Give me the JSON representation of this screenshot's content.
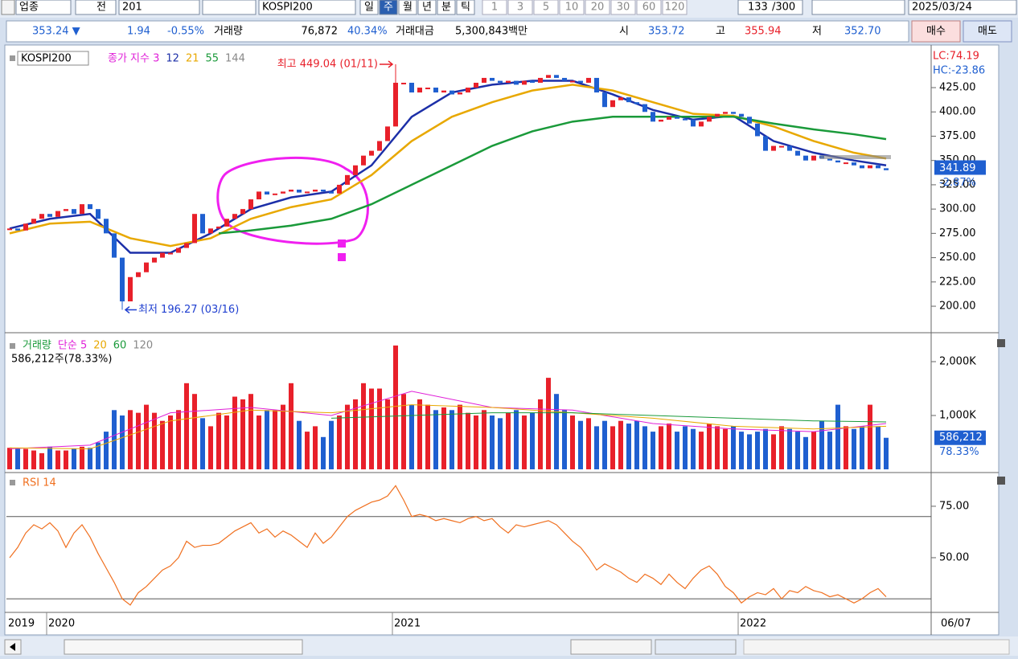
{
  "toolbar": {
    "market": "업종",
    "scope": "전",
    "code": "201",
    "name": "KOSPI200",
    "periods": [
      "일",
      "주",
      "월",
      "년",
      "분",
      "틱"
    ],
    "selected_period": "주",
    "intervals": [
      "1",
      "3",
      "5",
      "10",
      "20",
      "30",
      "60",
      "120"
    ],
    "count": "133",
    "max_count": "/300",
    "date": "2025/03/24"
  },
  "quote": {
    "price": "353.24 ▼",
    "change": "1.94",
    "change_pct": "-0.55%",
    "volume_label": "거래량",
    "volume": "76,872",
    "volume_pct": "40.34%",
    "amount_label": "거래대금",
    "amount": "5,300,843백만",
    "open_label": "시",
    "open": "353.72",
    "high_label": "고",
    "high": "355.94",
    "low_label": "저",
    "low": "352.70",
    "buy": "매수",
    "sell": "매도"
  },
  "price_chart": {
    "type": "candlestick",
    "name": "KOSPI200",
    "ylim": [
      174.4,
      467.2
    ],
    "yticks": [
      {
        "value": 200,
        "label": "200.00"
      },
      {
        "value": 225,
        "label": "225.00"
      },
      {
        "value": 250,
        "label": "250.00"
      },
      {
        "value": 275,
        "label": "275.00"
      },
      {
        "value": 300,
        "label": "300.00"
      },
      {
        "value": 325,
        "label": "325.00"
      },
      {
        "value": 350,
        "label": "350.00"
      },
      {
        "value": 375,
        "label": "375.00"
      },
      {
        "value": 400,
        "label": "400.00"
      },
      {
        "value": 425,
        "label": "425.00"
      }
    ],
    "lc": "LC:74.19",
    "hc": "HC:-23.86",
    "last_value": 341.89,
    "last_change": "-2.87%",
    "high_note": "최고 449.04 (01/11)",
    "high_value": 449.04,
    "high_index": 48,
    "low_note": "최저 196.27 (03/16)",
    "low_value": 196.27,
    "low_index": 14,
    "up_color": "#e8202a",
    "down_color": "#1f5fd0",
    "closes": [
      280,
      278,
      285,
      290,
      295,
      292,
      298,
      300,
      295,
      305,
      300,
      290,
      275,
      250,
      205,
      230,
      235,
      245,
      250,
      255,
      255,
      260,
      265,
      295,
      275,
      280,
      282,
      290,
      295,
      300,
      310,
      318,
      315,
      316,
      318,
      320,
      317,
      318,
      320,
      318,
      316,
      325,
      335,
      345,
      355,
      360,
      370,
      385,
      430,
      430,
      420,
      425,
      425,
      420,
      422,
      418,
      420,
      425,
      430,
      435,
      432,
      430,
      432,
      428,
      432,
      430,
      435,
      438,
      435,
      432,
      432,
      430,
      435,
      420,
      405,
      412,
      415,
      410,
      408,
      400,
      390,
      392,
      395,
      393,
      392,
      385,
      390,
      395,
      398,
      400,
      398,
      395,
      388,
      375,
      360,
      365,
      365,
      360,
      355,
      350,
      355,
      352,
      350,
      348,
      348,
      345,
      342,
      345,
      342,
      340
    ],
    "series": [
      {
        "name": "종가 지수 3",
        "color": "#e020d8"
      },
      {
        "name": "12",
        "color": "#1c2fa8",
        "x": [
          0,
          5,
          10,
          15,
          20,
          25,
          30,
          35,
          40,
          45,
          50,
          55,
          60,
          65,
          70,
          75,
          80,
          85,
          90,
          95,
          100,
          105,
          109
        ],
        "values": [
          280,
          290,
          295,
          255,
          255,
          275,
          300,
          312,
          318,
          345,
          395,
          420,
          428,
          432,
          432,
          418,
          402,
          392,
          396,
          370,
          358,
          350,
          345
        ]
      },
      {
        "name": "21",
        "color": "#e8a800",
        "x": [
          0,
          5,
          10,
          15,
          20,
          25,
          30,
          35,
          40,
          45,
          50,
          55,
          60,
          65,
          70,
          75,
          80,
          85,
          90,
          95,
          100,
          105,
          109
        ],
        "values": [
          275,
          285,
          287,
          270,
          262,
          270,
          290,
          302,
          310,
          335,
          370,
          395,
          410,
          422,
          428,
          422,
          410,
          398,
          396,
          385,
          370,
          358,
          352
        ]
      },
      {
        "name": "55",
        "color": "#1a9a3a",
        "x": [
          26,
          30,
          35,
          40,
          45,
          50,
          55,
          60,
          65,
          70,
          75,
          80,
          85,
          90,
          95,
          100,
          105,
          109
        ],
        "values": [
          275,
          278,
          283,
          290,
          305,
          325,
          345,
          365,
          380,
          390,
          395,
          395,
          395,
          395,
          388,
          382,
          377,
          372
        ]
      },
      {
        "name": "144",
        "color": "#888888"
      }
    ]
  },
  "volume_chart": {
    "type": "bar",
    "title": "거래량",
    "subtitle": "586,212주(78.33%)",
    "ylim": [
      -30,
      2448
    ],
    "yticks": [
      {
        "value": 1000,
        "label": "1,000K"
      },
      {
        "value": 2000,
        "label": "2,000K"
      }
    ],
    "last_label": "586,212",
    "last_pct": "78.33%",
    "values": [
      400,
      380,
      380,
      350,
      300,
      420,
      350,
      350,
      380,
      420,
      400,
      500,
      700,
      1100,
      1000,
      1100,
      1050,
      1200,
      1050,
      900,
      1000,
      1100,
      1600,
      1400,
      950,
      800,
      1050,
      1000,
      1350,
      1300,
      1400,
      1000,
      1100,
      1100,
      1200,
      1600,
      900,
      700,
      800,
      600,
      900,
      1000,
      1200,
      1300,
      1600,
      1500,
      1500,
      1300,
      2300,
      1400,
      1200,
      1300,
      1200,
      1100,
      1150,
      1100,
      1200,
      1050,
      1000,
      1100,
      1000,
      950,
      1050,
      1100,
      1000,
      1050,
      1300,
      1700,
      1400,
      1100,
      1000,
      900,
      950,
      800,
      900,
      800,
      900,
      850,
      900,
      800,
      700,
      800,
      850,
      700,
      800,
      750,
      700,
      850,
      800,
      750,
      800,
      700,
      650,
      700,
      750,
      650,
      800,
      750,
      700,
      600,
      700,
      900,
      700,
      1200,
      800,
      750,
      800,
      1200,
      800,
      586
    ],
    "series": [
      {
        "name": "단순 5",
        "color": "#e020d8",
        "x": [
          0,
          10,
          20,
          30,
          40,
          50,
          60,
          70,
          80,
          90,
          100,
          109
        ],
        "values": [
          380,
          450,
          1050,
          1150,
          1000,
          1450,
          1150,
          1100,
          850,
          750,
          700,
          850
        ]
      },
      {
        "name": "20",
        "color": "#e8a800",
        "x": [
          0,
          10,
          20,
          30,
          40,
          50,
          60,
          70,
          80,
          90,
          100,
          109
        ],
        "values": [
          400,
          380,
          900,
          1100,
          1050,
          1200,
          1150,
          1050,
          950,
          800,
          750,
          800
        ]
      },
      {
        "name": "60",
        "color": "#1a9a3a",
        "x": [
          40,
          50,
          60,
          70,
          80,
          90,
          100,
          109
        ],
        "values": [
          950,
          1000,
          1050,
          1050,
          1000,
          950,
          900,
          880
        ]
      },
      {
        "name": "120",
        "color": "#888888"
      }
    ]
  },
  "rsi_chart": {
    "type": "line",
    "title": "RSI 14",
    "color": "#f07020",
    "ylim": [
      24.2,
      90.6
    ],
    "yticks": [
      {
        "value": 50,
        "label": "50.00"
      },
      {
        "value": 75,
        "label": "75.00"
      }
    ],
    "levels": [
      70,
      30
    ],
    "values": [
      50,
      55,
      62,
      66,
      64,
      67,
      63,
      55,
      62,
      66,
      60,
      52,
      45,
      38,
      30,
      27,
      33,
      36,
      40,
      44,
      46,
      50,
      58,
      55,
      56,
      56,
      57,
      60,
      63,
      65,
      67,
      62,
      64,
      60,
      63,
      61,
      58,
      55,
      62,
      57,
      60,
      65,
      70,
      73,
      75,
      77,
      78,
      80,
      85,
      78,
      70,
      71,
      70,
      68,
      69,
      68,
      67,
      69,
      70,
      68,
      69,
      65,
      62,
      66,
      65,
      66,
      67,
      68,
      66,
      62,
      58,
      55,
      50,
      44,
      47,
      45,
      43,
      40,
      38,
      42,
      40,
      37,
      42,
      38,
      35,
      40,
      44,
      46,
      42,
      36,
      33,
      28,
      31,
      33,
      32,
      35,
      30,
      34,
      33,
      36,
      34,
      33,
      31,
      32,
      30,
      28,
      30,
      33,
      35,
      31
    ]
  },
  "date_axis": {
    "labels": [
      "2019",
      "2020",
      "2021",
      "2022"
    ],
    "last": "06/07"
  }
}
